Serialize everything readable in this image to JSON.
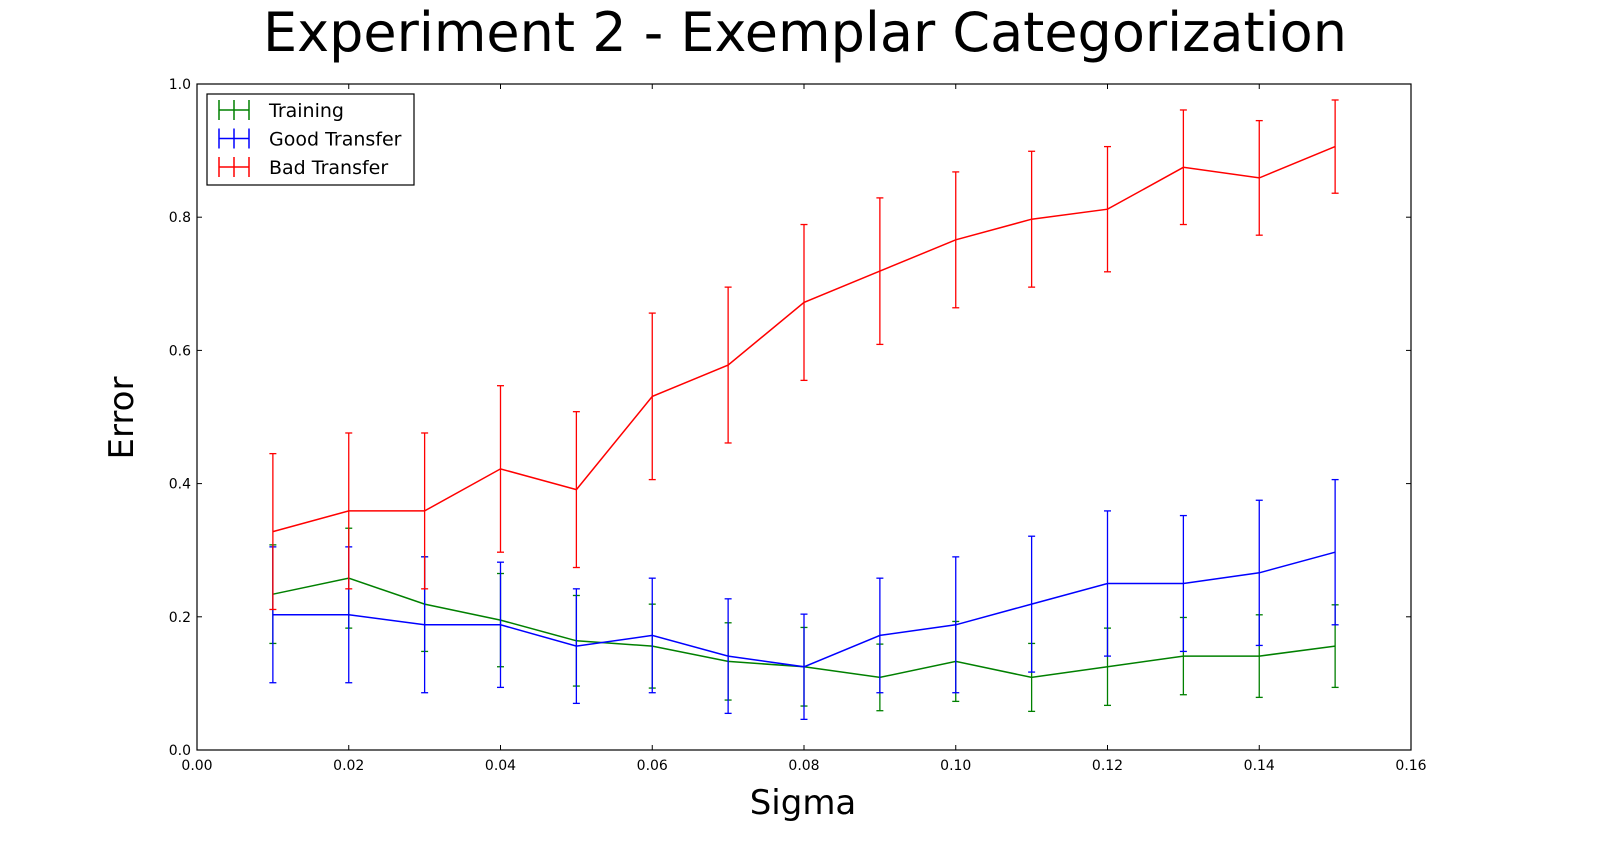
{
  "chart_data": {
    "type": "line",
    "title": "Experiment 2 - Exemplar Categorization",
    "xlabel": "Sigma",
    "ylabel": "Error",
    "xlim": [
      0.0,
      0.16
    ],
    "ylim": [
      0.0,
      1.0
    ],
    "xticks": [
      0.0,
      0.02,
      0.04,
      0.06,
      0.08,
      0.1,
      0.12,
      0.14,
      0.16
    ],
    "xtick_labels": [
      "0.00",
      "0.02",
      "0.04",
      "0.06",
      "0.08",
      "0.10",
      "0.12",
      "0.14",
      "0.16"
    ],
    "yticks": [
      0.0,
      0.2,
      0.4,
      0.6,
      0.8,
      1.0
    ],
    "ytick_labels": [
      "0.0",
      "0.2",
      "0.4",
      "0.6",
      "0.8",
      "1.0"
    ],
    "grid": false,
    "legend_position": "top-left",
    "x": [
      0.01,
      0.02,
      0.03,
      0.04,
      0.05,
      0.06,
      0.07,
      0.08,
      0.09,
      0.1,
      0.11,
      0.12,
      0.13,
      0.14,
      0.15
    ],
    "series": [
      {
        "name": "Training",
        "color": "#008000",
        "values": [
          0.234,
          0.258,
          0.219,
          0.195,
          0.164,
          0.156,
          0.133,
          0.125,
          0.109,
          0.133,
          0.109,
          0.125,
          0.141,
          0.141,
          0.156
        ],
        "errors": [
          0.074,
          0.075,
          0.071,
          0.07,
          0.068,
          0.063,
          0.058,
          0.059,
          0.05,
          0.06,
          0.051,
          0.058,
          0.058,
          0.062,
          0.062
        ]
      },
      {
        "name": "Good Transfer",
        "color": "#0000ff",
        "values": [
          0.203,
          0.203,
          0.188,
          0.188,
          0.156,
          0.172,
          0.141,
          0.125,
          0.172,
          0.188,
          0.219,
          0.25,
          0.25,
          0.266,
          0.297
        ],
        "errors": [
          0.102,
          0.102,
          0.102,
          0.094,
          0.086,
          0.086,
          0.086,
          0.079,
          0.086,
          0.102,
          0.102,
          0.109,
          0.102,
          0.109,
          0.109
        ]
      },
      {
        "name": "Bad Transfer",
        "color": "#ff0000",
        "values": [
          0.328,
          0.359,
          0.359,
          0.422,
          0.391,
          0.531,
          0.578,
          0.672,
          0.719,
          0.766,
          0.797,
          0.812,
          0.875,
          0.859,
          0.906
        ],
        "errors": [
          0.117,
          0.117,
          0.117,
          0.125,
          0.117,
          0.125,
          0.117,
          0.117,
          0.11,
          0.102,
          0.102,
          0.094,
          0.086,
          0.086,
          0.07
        ]
      }
    ]
  }
}
